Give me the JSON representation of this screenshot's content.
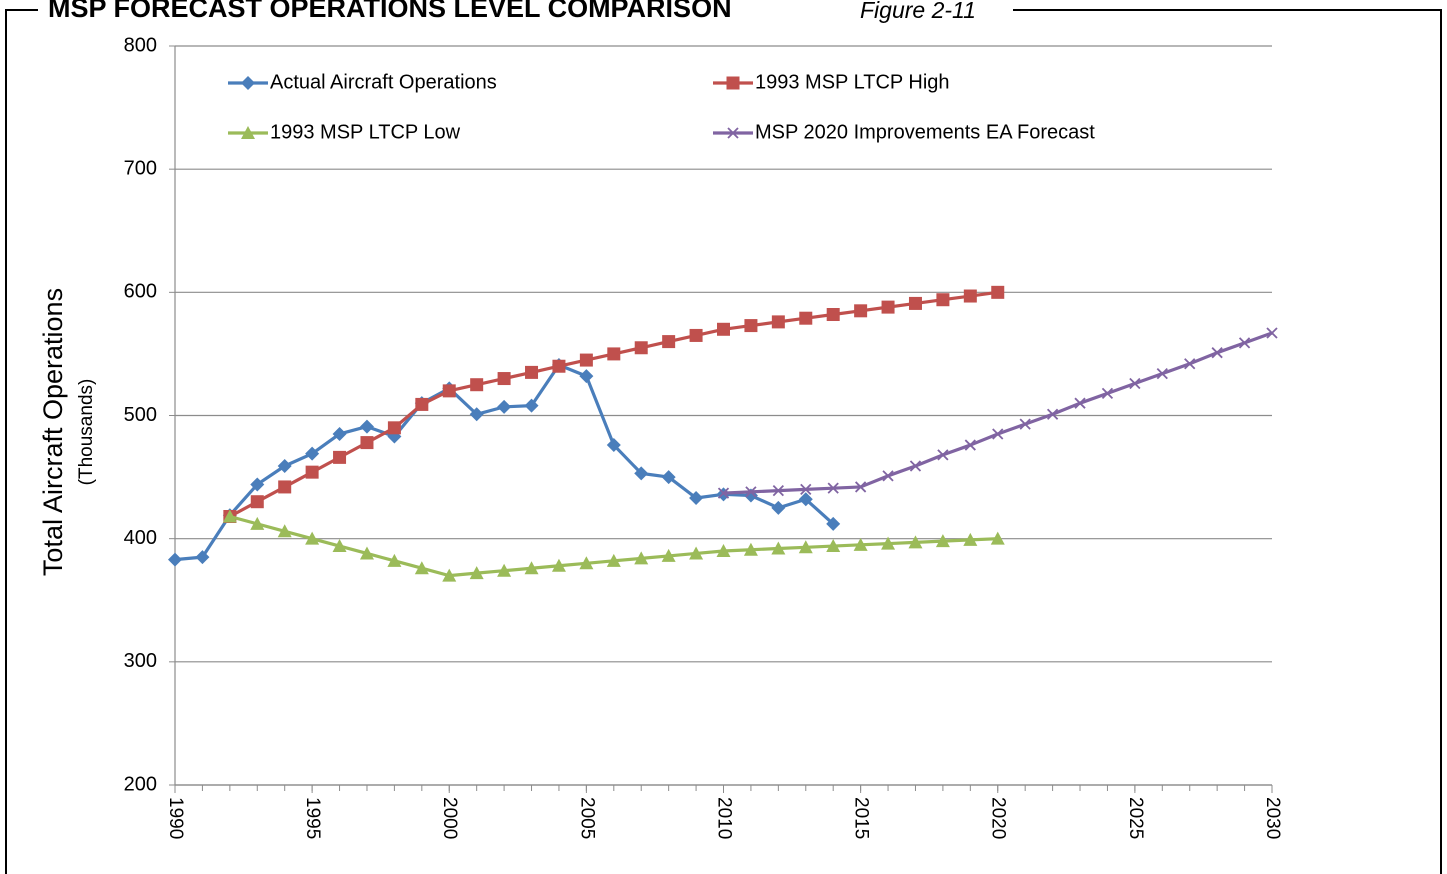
{
  "chart_data": {
    "type": "line",
    "title": "MSP FORECAST OPERATIONS LEVEL COMPARISON",
    "subtitle": "Figure 2-11",
    "y_label": "Total Aircraft Operations",
    "y_label_sub": "(Thousands)",
    "xlim": [
      1990,
      2030
    ],
    "xticks": [
      1990,
      1995,
      2000,
      2005,
      2010,
      2015,
      2020,
      2025,
      2030
    ],
    "ylim": [
      200,
      800
    ],
    "yticks": [
      200,
      300,
      400,
      500,
      600,
      700,
      800
    ],
    "grid": true,
    "legend": "top",
    "series": [
      {
        "name": "Actual Aircraft Operations",
        "color": "#4a7ebb",
        "marker": "diamond",
        "x": [
          1990,
          1991,
          1992,
          1993,
          1994,
          1995,
          1996,
          1997,
          1998,
          1999,
          2000,
          2001,
          2002,
          2003,
          2004,
          2005,
          2006,
          2007,
          2008,
          2009,
          2010,
          2011,
          2012,
          2013,
          2014
        ],
        "values": [
          383,
          385,
          419,
          444,
          459,
          469,
          485,
          491,
          483,
          510,
          522,
          501,
          507,
          508,
          541,
          532,
          476,
          453,
          450,
          433,
          436,
          435,
          425,
          432,
          412
        ]
      },
      {
        "name": "1993 MSP LTCP High",
        "color": "#c0504d",
        "marker": "square",
        "x": [
          1992,
          1993,
          1994,
          1995,
          1996,
          1997,
          1998,
          1999,
          2000,
          2001,
          2002,
          2003,
          2004,
          2005,
          2006,
          2007,
          2008,
          2009,
          2010,
          2011,
          2012,
          2013,
          2014,
          2015,
          2016,
          2017,
          2018,
          2019,
          2020
        ],
        "values": [
          418,
          430,
          442,
          454,
          466,
          478,
          490,
          509,
          520,
          525,
          530,
          535,
          540,
          545,
          550,
          555,
          560,
          565,
          570,
          573,
          576,
          579,
          582,
          585,
          588,
          591,
          594,
          597,
          600
        ]
      },
      {
        "name": "1993 MSP LTCP Low",
        "color": "#9bbb59",
        "marker": "triangle",
        "x": [
          1992,
          1993,
          1994,
          1995,
          1996,
          1997,
          1998,
          1999,
          2000,
          2001,
          2002,
          2003,
          2004,
          2005,
          2006,
          2007,
          2008,
          2009,
          2010,
          2011,
          2012,
          2013,
          2014,
          2015,
          2016,
          2017,
          2018,
          2019,
          2020
        ],
        "values": [
          418,
          412,
          406,
          400,
          394,
          388,
          382,
          376,
          370,
          372,
          374,
          376,
          378,
          380,
          382,
          384,
          386,
          388,
          390,
          391,
          392,
          393,
          394,
          395,
          396,
          397,
          398,
          399,
          400
        ]
      },
      {
        "name": "MSP 2020 Improvements EA Forecast",
        "color": "#8064a2",
        "marker": "x",
        "x": [
          2010,
          2011,
          2012,
          2013,
          2014,
          2015,
          2016,
          2017,
          2018,
          2019,
          2020,
          2021,
          2022,
          2023,
          2024,
          2025,
          2026,
          2027,
          2028,
          2029,
          2030
        ],
        "values": [
          437,
          438,
          439,
          440,
          441,
          442,
          451,
          459,
          468,
          476,
          485,
          493,
          501,
          510,
          518,
          526,
          534,
          542,
          551,
          559,
          567
        ]
      }
    ]
  }
}
